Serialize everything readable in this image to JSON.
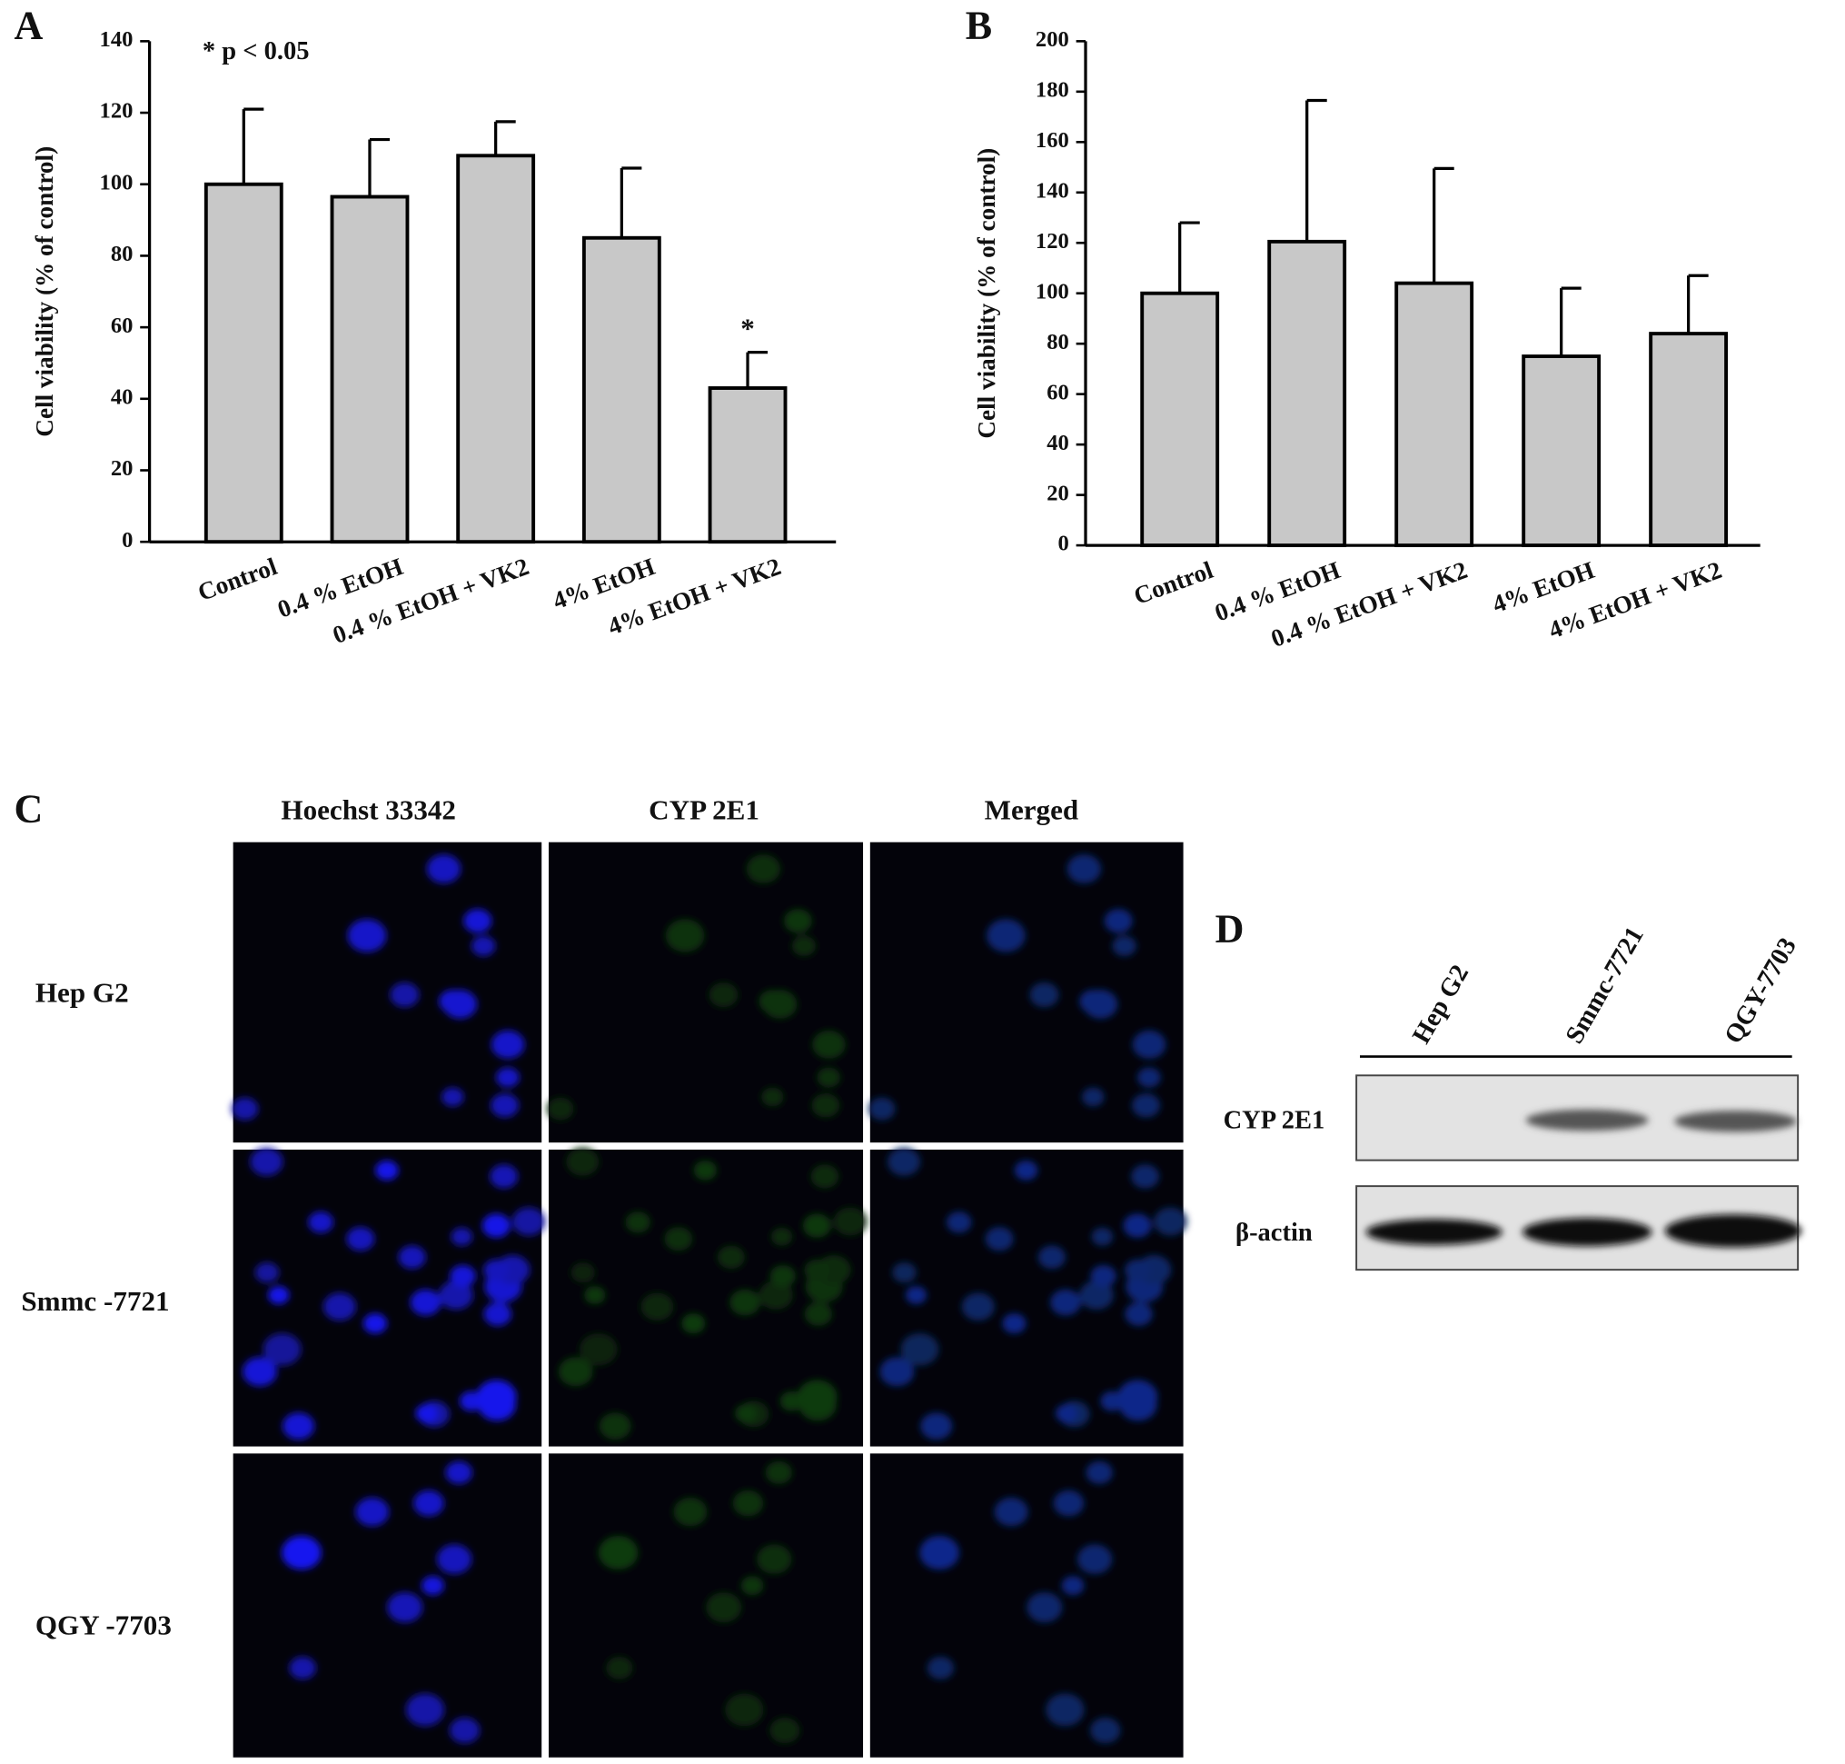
{
  "chart_data": [
    {
      "type": "bar",
      "panel_label": "A",
      "y_label": "Cell viability (% of control)",
      "annotation": "* p < 0.05",
      "categories": [
        "Control",
        "0.4 % EtOH",
        "0.4 % EtOH + VK2",
        "4% EtOH",
        "4% EtOH + VK2"
      ],
      "values": [
        100,
        96.5,
        108,
        85,
        43
      ],
      "errors": [
        21,
        16,
        9.5,
        19.5,
        10
      ],
      "markers": [
        null,
        null,
        null,
        null,
        "*"
      ],
      "color": "#c8c8c8",
      "ylim": [
        0,
        140
      ],
      "yticks": [
        0,
        20,
        40,
        60,
        80,
        100,
        120,
        140
      ]
    },
    {
      "type": "bar",
      "panel_label": "B",
      "y_label": "Cell viability (% of control)",
      "categories": [
        "Control",
        "0.4 % EtOH",
        "0.4 % EtOH + VK2",
        "4% EtOH",
        "4% EtOH + VK2"
      ],
      "values": [
        100,
        120.5,
        104,
        75,
        84
      ],
      "errors": [
        28,
        56,
        45.5,
        27,
        23
      ],
      "color": "#c8c8c8",
      "ylim": [
        0,
        200
      ],
      "yticks": [
        0,
        20,
        40,
        60,
        80,
        100,
        120,
        140,
        160,
        180,
        200
      ]
    }
  ],
  "panel_c": {
    "label": "C",
    "columns": [
      "Hoechst 33342",
      "CYP 2E1",
      "Merged"
    ],
    "rows": [
      "Hep G2",
      "Smmc -7721",
      "QGY -7703"
    ]
  },
  "panel_d": {
    "label": "D",
    "lanes": [
      "Hep G2",
      "Smmc-7721",
      "QGY-7703"
    ],
    "rows": [
      "CYP 2E1",
      "β-actin"
    ]
  }
}
